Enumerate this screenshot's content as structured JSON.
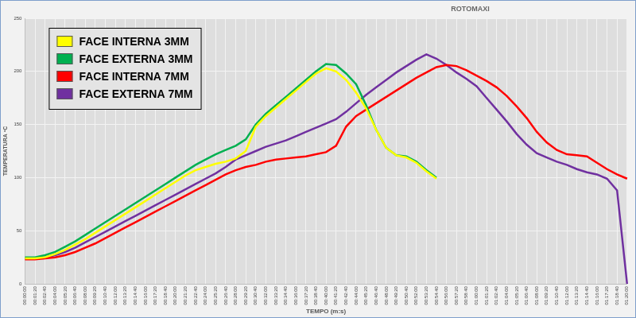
{
  "chart_data": {
    "type": "line",
    "title": "ROTOMAXI",
    "x_label": "TEMPO (m:s)",
    "y_label": "TEMPERATURA ºC",
    "categories": [
      "00:00:00",
      "00:01:20",
      "00:02:40",
      "00:04:00",
      "00:05:20",
      "00:06:40",
      "00:08:00",
      "00:09:20",
      "00:10:40",
      "00:12:00",
      "00:13:20",
      "00:14:40",
      "00:16:00",
      "00:17:20",
      "00:18:40",
      "00:20:00",
      "00:21:20",
      "00:22:40",
      "00:24:00",
      "00:25:20",
      "00:26:40",
      "00:28:00",
      "00:29:20",
      "00:30:40",
      "00:32:00",
      "00:33:20",
      "00:34:40",
      "00:36:00",
      "00:37:20",
      "00:38:40",
      "00:40:00",
      "00:41:20",
      "00:42:40",
      "00:44:00",
      "00:45:20",
      "00:46:40",
      "00:48:00",
      "00:49:20",
      "00:50:40",
      "00:52:00",
      "00:53:20",
      "00:54:40",
      "00:56:00",
      "00:57:20",
      "00:58:40",
      "01:00:00",
      "01:01:20",
      "01:02:40",
      "01:04:00",
      "01:05:20",
      "01:06:40",
      "01:08:00",
      "01:09:20",
      "01:10:40",
      "01:12:00",
      "01:13:20",
      "01:14:40",
      "01:16:00",
      "01:17:20",
      "01:18:40",
      "01:20:00"
    ],
    "series": [
      {
        "name": "FACE INTERNA 3MM",
        "color": "#ffff00",
        "values": [
          24,
          24,
          25,
          28,
          32,
          37,
          42,
          48,
          54,
          60,
          66,
          72,
          78,
          84,
          90,
          96,
          102,
          107,
          110,
          113,
          115,
          118,
          125,
          148,
          158,
          166,
          174,
          182,
          190,
          198,
          203,
          200,
          192,
          180,
          165,
          145,
          128,
          121,
          119,
          114,
          106,
          99,
          null,
          null,
          null,
          null,
          null,
          null,
          null,
          null,
          null,
          null,
          null,
          null,
          null,
          null,
          null,
          null,
          null,
          null,
          null
        ]
      },
      {
        "name": "FACE EXTERNA 3MM",
        "color": "#00b050",
        "values": [
          25,
          25,
          27,
          30,
          35,
          40,
          46,
          52,
          58,
          64,
          70,
          76,
          82,
          88,
          94,
          100,
          106,
          112,
          117,
          122,
          126,
          130,
          136,
          150,
          160,
          168,
          176,
          184,
          192,
          200,
          207,
          206,
          198,
          188,
          168,
          145,
          128,
          121,
          120,
          115,
          107,
          100,
          null,
          null,
          null,
          null,
          null,
          null,
          null,
          null,
          null,
          null,
          null,
          null,
          null,
          null,
          null,
          null,
          null,
          null,
          null
        ]
      },
      {
        "name": "FACE INTERNA 7MM",
        "color": "#ff0000",
        "values": [
          23,
          23,
          24,
          25,
          27,
          30,
          34,
          38,
          43,
          48,
          53,
          58,
          63,
          68,
          73,
          78,
          83,
          88,
          93,
          98,
          103,
          107,
          110,
          112,
          115,
          117,
          118,
          119,
          120,
          122,
          124,
          130,
          148,
          158,
          164,
          170,
          176,
          182,
          188,
          194,
          199,
          204,
          206,
          205,
          201,
          196,
          191,
          185,
          177,
          167,
          156,
          143,
          133,
          126,
          122,
          121,
          120,
          114,
          108,
          103,
          99
        ]
      },
      {
        "name": "FACE EXTERNA 7MM",
        "color": "#7030a0",
        "values": [
          24,
          24,
          25,
          27,
          30,
          34,
          39,
          44,
          49,
          54,
          59,
          64,
          69,
          74,
          79,
          84,
          89,
          94,
          99,
          104,
          110,
          117,
          121,
          125,
          129,
          132,
          135,
          139,
          143,
          147,
          151,
          155,
          162,
          170,
          178,
          185,
          192,
          199,
          205,
          211,
          216,
          212,
          206,
          199,
          193,
          186,
          175,
          164,
          153,
          141,
          131,
          123,
          119,
          115,
          112,
          108,
          105,
          103,
          99,
          88,
          0
        ]
      }
    ],
    "ylim": [
      0,
      250
    ],
    "yticks": [
      0,
      50,
      100,
      150,
      200,
      250
    ],
    "grid": true,
    "legend": "upper left"
  }
}
